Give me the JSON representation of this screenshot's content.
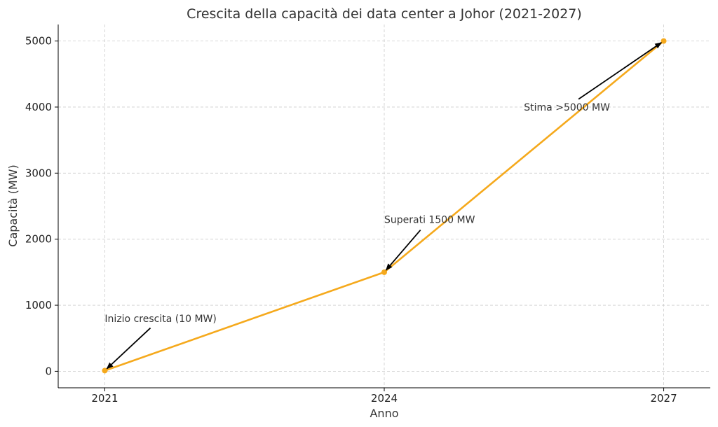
{
  "chart_data": {
    "type": "line",
    "title": "Crescita della capacità dei data center a Johor (2021-2027)",
    "xlabel": "Anno",
    "ylabel": "Capacità (MW)",
    "x": [
      2021,
      2024,
      2027
    ],
    "series": [
      {
        "values": [
          10,
          1500,
          5000
        ],
        "color": "#F5A91C"
      }
    ],
    "xticks": [
      2021,
      2024,
      2027
    ],
    "yticks": [
      0,
      1000,
      2000,
      3000,
      4000,
      5000
    ],
    "xlim": [
      2020.5,
      2027.5
    ],
    "ylim": [
      -250,
      5250
    ],
    "grid": true,
    "annotations": [
      {
        "text": "Inizio crescita (10 MW)",
        "x": 2021,
        "y": 10,
        "text_x": 2021,
        "text_y": 800
      },
      {
        "text": "Superati 1500 MW",
        "x": 2024,
        "y": 1500,
        "text_x": 2024,
        "text_y": 2300
      },
      {
        "text": "Stima >5000 MW",
        "x": 2027,
        "y": 5000,
        "text_x": 2025.5,
        "text_y": 4000
      }
    ]
  }
}
